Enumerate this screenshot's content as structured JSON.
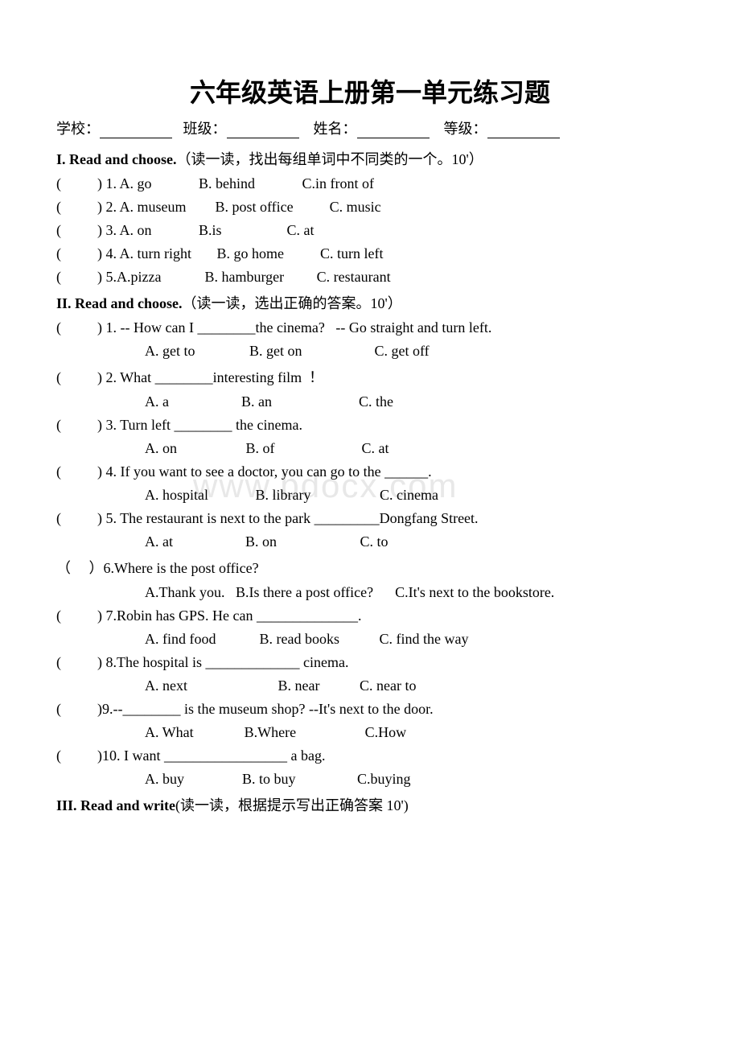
{
  "title": "六年级英语上册第一单元练习题",
  "info": {
    "school_label": "学校：",
    "class_label": "班级：",
    "name_label": "姓名：",
    "grade_label": "等级："
  },
  "watermark": "www.bdocx.com",
  "sections": {
    "s1": {
      "header_en": "I. Read and choose.",
      "header_cn": "（读一读，找出每组单词中不同类的一个。10'）",
      "q1": "(          ) 1. A. go             B. behind             C.in front of",
      "q2": "(          ) 2. A. museum        B. post office          C. music",
      "q3": "(          ) 3. A. on             B.is                  C. at",
      "q4": "(          ) 4. A. turn right       B. go home          C. turn left",
      "q5": "(          ) 5.A.pizza            B. hamburger         C. restaurant"
    },
    "s2": {
      "header_en": "II. Read and choose.",
      "header_cn": "（读一读，选出正确的答案。10'）",
      "q1": "(          ) 1. -- How can I ________the cinema?   -- Go straight and turn left.",
      "a1": "A. get to               B. get on                    C. get off",
      "q2": "(          ) 2. What ________interesting film  ！",
      "a2": "A. a                    B. an                        C. the",
      "q3": "(          ) 3. Turn left ________ the cinema.",
      "a3": "A. on                   B. of                        C. at",
      "q4": "(          ) 4. If you want to see a doctor, you can go to the ______.",
      "a4": "A. hospital             B. library                   C. cinema",
      "q5": "(          ) 5. The restaurant is next to the park _________Dongfang Street.",
      "a5": "A. at                    B. on                       C. to",
      "q6_pre": "（     ）",
      "q6": "6.Where is the post office?",
      "a6": "A.Thank you.   B.Is there a post office?      C.It's next to the bookstore.",
      "q7": "(          ) 7.Robin has GPS. He can ______________.",
      "a7": "A. find food            B. read books           C. find the way",
      "q8": "(          ) 8.The hospital is _____________ cinema.",
      "a8": "A. next                         B. near           C. near to",
      "q9": "(          )9.--________ is the museum shop? --It's next to the door.",
      "a9": "A. What              B.Where                   C.How",
      "q10": "(          )10. I want _________________ a bag.",
      "a10": "A. buy                B. to buy                 C.buying"
    },
    "s3": {
      "header_en": "III. Read and write",
      "header_cn": "(读一读，根据提示写出正确答案 10')"
    }
  }
}
